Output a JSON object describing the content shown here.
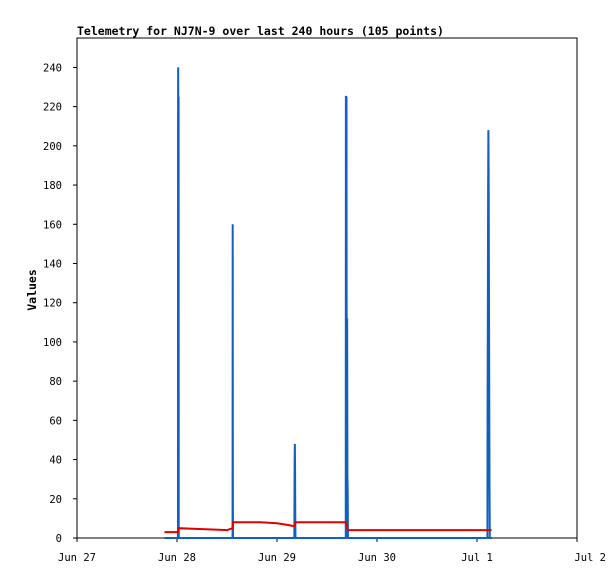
{
  "chart_data": {
    "type": "line",
    "title": "Telemetry for NJ7N-9 over last 240 hours (105 points)",
    "ylabel": "Values",
    "xlabel": "",
    "xlim": [
      "Jun 27",
      "Jul 2"
    ],
    "ylim": [
      0,
      255
    ],
    "x_ticks": [
      "Jun 27",
      "Jun 28",
      "Jun 29",
      "Jun 30",
      "Jul 1",
      "Jul 2"
    ],
    "y_ticks": [
      0,
      20,
      40,
      60,
      80,
      100,
      120,
      140,
      160,
      180,
      200,
      220,
      240
    ],
    "grid": false,
    "legend": "none",
    "series": [
      {
        "color": "#1060c0",
        "points": [
          [
            "Jun 27 21:00",
            0
          ],
          [
            "Jun 28 00:00",
            0
          ],
          [
            "Jun 28 00:14",
            0
          ],
          [
            "Jun 28 00:15",
            208
          ],
          [
            "Jun 28 00:17",
            240
          ],
          [
            "Jun 28 00:19",
            208
          ],
          [
            "Jun 28 00:21",
            145
          ],
          [
            "Jun 28 00:23",
            225
          ],
          [
            "Jun 28 00:25",
            0
          ],
          [
            "Jun 28 13:20",
            0
          ],
          [
            "Jun 28 13:22",
            160
          ],
          [
            "Jun 28 13:24",
            48
          ],
          [
            "Jun 28 13:26",
            0
          ],
          [
            "Jun 29 04:10",
            0
          ],
          [
            "Jun 29 04:12",
            22
          ],
          [
            "Jun 29 04:14",
            40
          ],
          [
            "Jun 29 04:17",
            48
          ],
          [
            "Jun 29 04:20",
            36
          ],
          [
            "Jun 29 04:23",
            12
          ],
          [
            "Jun 29 04:26",
            0
          ],
          [
            "Jun 29 16:30",
            0
          ],
          [
            "Jun 29 16:32",
            225
          ],
          [
            "Jun 29 16:35",
            225
          ],
          [
            "Jun 29 16:38",
            55
          ],
          [
            "Jun 29 16:41",
            225
          ],
          [
            "Jun 29 16:45",
            0
          ],
          [
            "Jun 29 16:50",
            112
          ],
          [
            "Jun 29 16:54",
            32
          ],
          [
            "Jun 29 16:58",
            24
          ],
          [
            "Jun 29 17:02",
            0
          ],
          [
            "Jul 1 02:30",
            0
          ],
          [
            "Jul 1 02:32",
            64
          ],
          [
            "Jul 1 02:36",
            112
          ],
          [
            "Jul 1 02:40",
            177
          ],
          [
            "Jul 1 02:44",
            208
          ],
          [
            "Jul 1 02:48",
            183
          ],
          [
            "Jul 1 02:52",
            130
          ],
          [
            "Jul 1 02:56",
            78
          ],
          [
            "Jul 1 03:00",
            26
          ],
          [
            "Jul 1 03:04",
            0
          ],
          [
            "Jul 1 03:30",
            0
          ]
        ]
      },
      {
        "color": "#e00000",
        "points": [
          [
            "Jun 27 21:00",
            3
          ],
          [
            "Jun 28 00:14",
            3
          ],
          [
            "Jun 28 00:25",
            5
          ],
          [
            "Jun 28 06:00",
            4.5
          ],
          [
            "Jun 28 10:00",
            4.2
          ],
          [
            "Jun 28 12:00",
            4
          ],
          [
            "Jun 28 13:20",
            5
          ],
          [
            "Jun 28 13:26",
            8
          ],
          [
            "Jun 28 20:00",
            8
          ],
          [
            "Jun 29 00:00",
            7.5
          ],
          [
            "Jun 29 03:00",
            6.5
          ],
          [
            "Jun 29 04:10",
            6
          ],
          [
            "Jun 29 04:26",
            8
          ],
          [
            "Jun 29 10:00",
            8
          ],
          [
            "Jun 29 16:30",
            8
          ],
          [
            "Jun 29 17:02",
            4
          ],
          [
            "Jul 1 03:30",
            4
          ]
        ]
      }
    ]
  }
}
